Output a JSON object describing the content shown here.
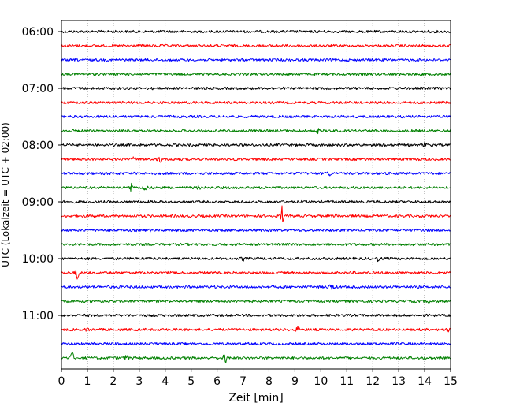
{
  "chart_data": {
    "type": "line",
    "title": "",
    "xlabel": "Zeit  [min]",
    "ylabel": "UTC (Lokalzeit = UTC + 02:00)",
    "xlim": [
      0,
      15
    ],
    "x_ticks": [
      "0",
      "1",
      "2",
      "3",
      "4",
      "5",
      "6",
      "7",
      "8",
      "9",
      "10",
      "11",
      "12",
      "13",
      "14",
      "15"
    ],
    "y_tick_labels": [
      "06:00",
      "07:00",
      "08:00",
      "09:00",
      "10:00",
      "11:00"
    ],
    "grid": "vertical dotted",
    "trace_interval_minutes": 15,
    "start_time": "06:00",
    "colors_cycle": [
      "#000000",
      "#ff0000",
      "#0000ff",
      "#008000"
    ],
    "series": [
      {
        "time": "06:00",
        "color": "#000000",
        "events": []
      },
      {
        "time": "06:15",
        "color": "#ff0000",
        "events": []
      },
      {
        "time": "06:30",
        "color": "#0000ff",
        "events": []
      },
      {
        "time": "06:45",
        "color": "#008000",
        "events": []
      },
      {
        "time": "07:00",
        "color": "#000000",
        "events": [
          {
            "t": 3.6,
            "amp": 4
          }
        ]
      },
      {
        "time": "07:15",
        "color": "#ff0000",
        "events": []
      },
      {
        "time": "07:30",
        "color": "#0000ff",
        "events": []
      },
      {
        "time": "07:45",
        "color": "#008000",
        "events": [
          {
            "t": 9.9,
            "amp": 4
          }
        ]
      },
      {
        "time": "08:00",
        "color": "#000000",
        "events": [
          {
            "t": 12.5,
            "amp": 4
          },
          {
            "t": 14.0,
            "amp": 4
          }
        ]
      },
      {
        "time": "08:15",
        "color": "#ff0000",
        "events": [
          {
            "t": 2.8,
            "amp": 4
          },
          {
            "t": 3.8,
            "amp": 5
          }
        ]
      },
      {
        "time": "08:30",
        "color": "#0000ff",
        "events": [
          {
            "t": 10.3,
            "amp": 5
          }
        ]
      },
      {
        "time": "08:45",
        "color": "#008000",
        "events": [
          {
            "t": 2.7,
            "amp": 7
          },
          {
            "t": 3.2,
            "amp": 6
          },
          {
            "t": 5.3,
            "amp": 4
          }
        ]
      },
      {
        "time": "09:00",
        "color": "#000000",
        "events": [
          {
            "t": 14.3,
            "amp": 4
          }
        ]
      },
      {
        "time": "09:15",
        "color": "#ff0000",
        "events": [
          {
            "t": 8.5,
            "amp": 17
          },
          {
            "t": 1.2,
            "amp": 4
          },
          {
            "t": 10.6,
            "amp": 4
          }
        ]
      },
      {
        "time": "09:30",
        "color": "#0000ff",
        "events": [
          {
            "t": 3.5,
            "amp": 4
          }
        ]
      },
      {
        "time": "09:45",
        "color": "#008000",
        "events": []
      },
      {
        "time": "10:00",
        "color": "#000000",
        "events": [
          {
            "t": 7.0,
            "amp": 4
          },
          {
            "t": 12.2,
            "amp": 4
          }
        ]
      },
      {
        "time": "10:15",
        "color": "#ff0000",
        "events": [
          {
            "t": 0.6,
            "amp": 14
          }
        ]
      },
      {
        "time": "10:30",
        "color": "#0000ff",
        "events": [
          {
            "t": 10.4,
            "amp": 6
          }
        ]
      },
      {
        "time": "10:45",
        "color": "#008000",
        "events": [
          {
            "t": 14.2,
            "amp": 4
          }
        ]
      },
      {
        "time": "11:00",
        "color": "#000000",
        "events": []
      },
      {
        "time": "11:15",
        "color": "#ff0000",
        "events": [
          {
            "t": 1.0,
            "amp": 4
          },
          {
            "t": 9.1,
            "amp": 5
          },
          {
            "t": 14.9,
            "amp": 4
          }
        ]
      },
      {
        "time": "11:30",
        "color": "#0000ff",
        "events": []
      },
      {
        "time": "11:45",
        "color": "#008000",
        "events": [
          {
            "t": 0.4,
            "amp": 15
          },
          {
            "t": 6.3,
            "amp": 14
          },
          {
            "t": 2.5,
            "amp": 5
          }
        ]
      }
    ]
  }
}
